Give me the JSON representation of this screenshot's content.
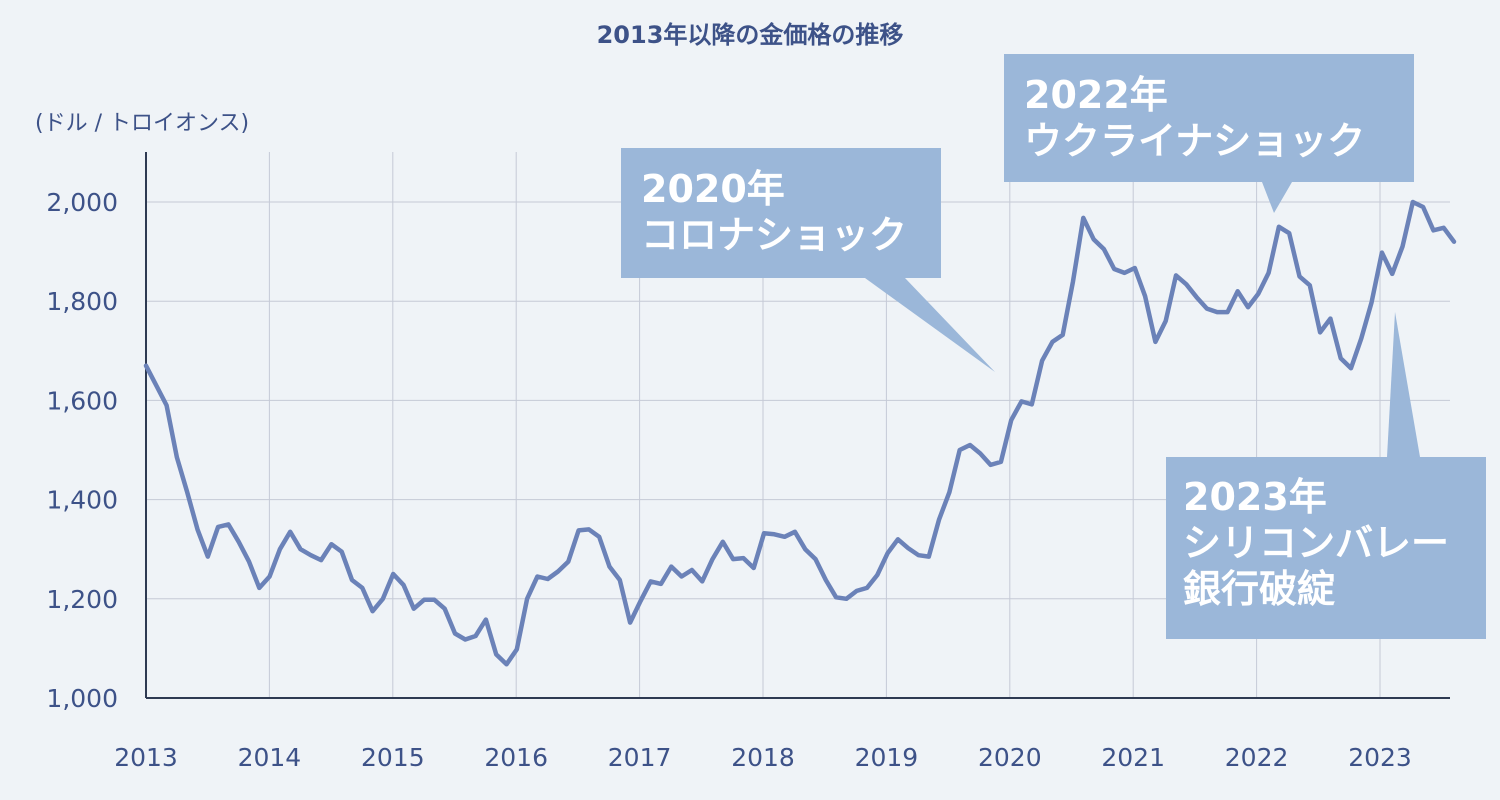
{
  "chart_data": {
    "type": "line",
    "title": "2013年以降の金価格の推移",
    "ylabel": "(ドル / トロイオンス)",
    "xlabel": "",
    "ylim": [
      1000,
      2100
    ],
    "xlim": [
      2013.0,
      2023.6
    ],
    "y_ticks": [
      1000,
      1200,
      1400,
      1600,
      1800,
      2000
    ],
    "y_tick_labels": [
      "1,000",
      "1,200",
      "1,400",
      "1,600",
      "1,800",
      "2,000"
    ],
    "x_ticks": [
      2013,
      2014,
      2015,
      2016,
      2017,
      2018,
      2019,
      2020,
      2021,
      2022,
      2023
    ],
    "x_tick_labels": [
      "2013",
      "2014",
      "2015",
      "2016",
      "2017",
      "2018",
      "2019",
      "2020",
      "2021",
      "2022",
      "2023"
    ],
    "grid": true,
    "series": [
      {
        "values": [
          1670,
          1630,
          1590,
          1485,
          1415,
          1340,
          1285,
          1345,
          1350,
          1315,
          1275,
          1222,
          1245,
          1300,
          1335,
          1300,
          1288,
          1278,
          1310,
          1295,
          1238,
          1222,
          1175,
          1200,
          1250,
          1228,
          1180,
          1198,
          1198,
          1180,
          1130,
          1118,
          1125,
          1158,
          1088,
          1068,
          1098,
          1200,
          1245,
          1240,
          1255,
          1275,
          1338,
          1340,
          1325,
          1265,
          1238,
          1152,
          1195,
          1235,
          1230,
          1265,
          1245,
          1258,
          1235,
          1280,
          1315,
          1280,
          1282,
          1262,
          1332,
          1330,
          1325,
          1335,
          1300,
          1280,
          1238,
          1203,
          1200,
          1216,
          1222,
          1248,
          1292,
          1320,
          1302,
          1288,
          1285,
          1360,
          1415,
          1500,
          1510,
          1493,
          1470,
          1476,
          1560,
          1598,
          1592,
          1680,
          1718,
          1732,
          1840,
          1968,
          1925,
          1905,
          1865,
          1857,
          1867,
          1810,
          1718,
          1760,
          1852,
          1834,
          1808,
          1785,
          1778,
          1778,
          1820,
          1788,
          1815,
          1857,
          1950,
          1937,
          1850,
          1832,
          1737,
          1765,
          1685,
          1665,
          1725,
          1798,
          1898,
          1855,
          1910,
          2000,
          1990,
          1943,
          1948,
          1920
        ]
      }
    ],
    "annotations": [
      {
        "lines": [
          "2020年",
          "コロナショック"
        ],
        "x": 2019.9,
        "y": 1660
      },
      {
        "lines": [
          "2022年",
          "ウクライナショック"
        ],
        "x": 2022.2,
        "y": 1975
      },
      {
        "lines": [
          "2023年",
          "シリコンバレー",
          "銀行破綻"
        ],
        "x": 2023.15,
        "y": 1775
      }
    ],
    "colors": {
      "line": "#6b82b8",
      "callout": "#9bb7d9",
      "callout_text": "#ffffff",
      "text": "#3d5288"
    }
  }
}
